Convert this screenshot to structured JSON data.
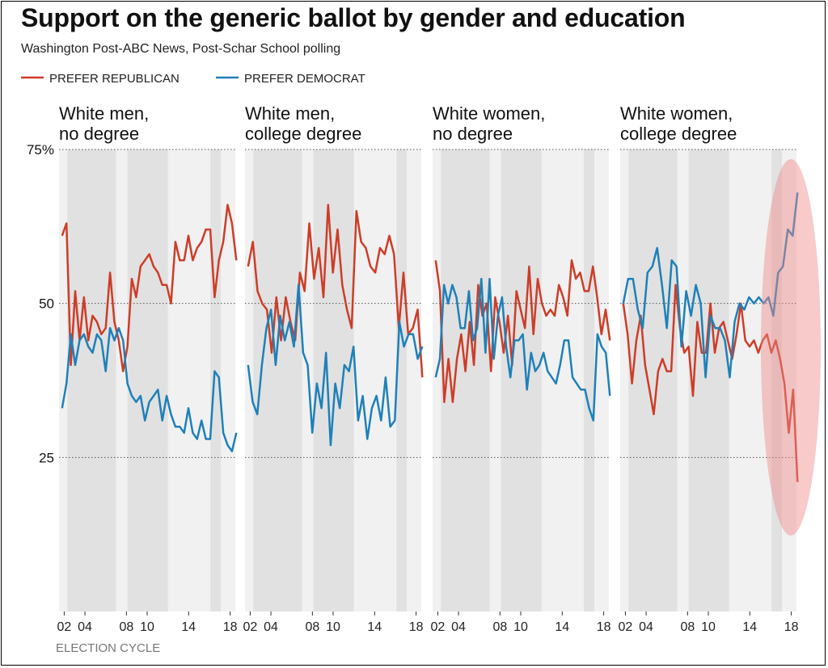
{
  "title": "Support on the generic ballot by gender and education",
  "subtitle": "Washington Post-ABC News, Post-Schar School polling",
  "colors": {
    "republican": "#cc3d28",
    "democrat": "#1e80b8",
    "panel_bg": "#f1f1f1",
    "band_bg": "#e1e1e1",
    "highlight": "#f08a8a"
  },
  "chart_data": {
    "type": "line",
    "title": "Support on the generic ballot by gender and education",
    "xlabel": "ELECTION CYCLE",
    "ylabel": "",
    "ylim": [
      0,
      75
    ],
    "y_ticks": [
      {
        "value": 75,
        "label": "75%"
      },
      {
        "value": 50,
        "label": "50"
      },
      {
        "value": 25,
        "label": "25"
      }
    ],
    "x_range": [
      2001.5,
      2018.5
    ],
    "x_ticks": [
      {
        "value": 2002,
        "label": "02"
      },
      {
        "value": 2004,
        "label": "04"
      },
      {
        "value": 2008,
        "label": "08"
      },
      {
        "value": 2010,
        "label": "10"
      },
      {
        "value": 2014,
        "label": "14"
      },
      {
        "value": 2018,
        "label": "18"
      }
    ],
    "shaded_periods": [
      [
        2002.3,
        2007.0
      ],
      [
        2008.1,
        2012.0
      ],
      [
        2016.1,
        2017.1
      ]
    ],
    "legend": [
      {
        "key": "republican",
        "label": "PREFER REPUBLICAN"
      },
      {
        "key": "democrat",
        "label": "PREFER DEMOCRAT"
      }
    ],
    "legend_position": "top-left",
    "grid": true,
    "highlight_note": "latest readings for white women with college degrees circled",
    "panels": [
      {
        "name": "White men, no degree",
        "title_lines": [
          "White men,",
          "no degree"
        ],
        "series": [
          {
            "name": "PREFER REPUBLICAN",
            "key": "republican",
            "values": [
              61,
              63,
              40,
              52,
              44,
              51,
              44,
              48,
              47,
              45,
              46,
              55,
              47,
              44,
              39,
              43,
              54,
              51,
              56,
              57,
              58,
              56,
              55,
              53,
              53,
              50,
              60,
              57,
              57,
              61,
              57,
              59,
              60,
              62,
              62,
              51,
              57,
              60,
              66,
              63,
              57
            ]
          },
          {
            "name": "PREFER DEMOCRAT",
            "key": "democrat",
            "values": [
              33,
              37,
              45,
              40,
              44,
              45,
              43,
              42,
              45,
              44,
              39,
              46,
              44,
              46,
              44,
              37,
              35,
              34,
              35,
              31,
              34,
              35,
              36,
              31,
              35,
              32,
              30,
              30,
              29,
              33,
              29,
              28,
              31,
              28,
              28,
              39,
              38,
              29,
              27,
              26,
              29
            ]
          }
        ]
      },
      {
        "name": "White men, college degree",
        "title_lines": [
          "White men,",
          "college degree"
        ],
        "series": [
          {
            "name": "PREFER REPUBLICAN",
            "key": "republican",
            "values": [
              56,
              60,
              52,
              50,
              49,
              42,
              51,
              44,
              51,
              47,
              44,
              55,
              52,
              63,
              54,
              59,
              51,
              66,
              55,
              62,
              53,
              49,
              46,
              65,
              60,
              59,
              56,
              55,
              59,
              58,
              61,
              58,
              46,
              55,
              45,
              46,
              49,
              38
            ]
          },
          {
            "name": "PREFER DEMOCRAT",
            "key": "democrat",
            "values": [
              40,
              34,
              32,
              40,
              46,
              49,
              40,
              48,
              44,
              47,
              43,
              53,
              42,
              40,
              29,
              37,
              33,
              42,
              27,
              37,
              33,
              40,
              39,
              43,
              31,
              35,
              28,
              33,
              35,
              31,
              38,
              30,
              31,
              47,
              43,
              45,
              45,
              41,
              43
            ]
          }
        ]
      },
      {
        "name": "White women, no degree",
        "title_lines": [
          "White women,",
          "no degree"
        ],
        "series": [
          {
            "name": "PREFER REPUBLICAN",
            "key": "republican",
            "values": [
              57,
              52,
              34,
              41,
              34,
              41,
              45,
              39,
              47,
              40,
              53,
              48,
              50,
              39,
              51,
              47,
              42,
              48,
              40,
              52,
              49,
              46,
              56,
              45,
              54,
              50,
              48,
              49,
              48,
              53,
              51,
              48,
              57,
              54,
              55,
              52,
              52,
              56,
              51,
              45,
              49,
              44
            ]
          },
          {
            "name": "PREFER DEMOCRAT",
            "key": "democrat",
            "values": [
              38,
              41,
              53,
              50,
              53,
              51,
              46,
              46,
              52,
              44,
              46,
              54,
              42,
              54,
              41,
              48,
              51,
              43,
              38,
              44,
              44,
              45,
              36,
              42,
              39,
              40,
              42,
              39,
              38,
              37,
              40,
              44,
              44,
              38,
              37,
              36,
              36,
              33,
              31,
              45,
              43,
              42,
              35
            ]
          }
        ]
      },
      {
        "name": "White women, college degree",
        "title_lines": [
          "White women,",
          "college degree"
        ],
        "series": [
          {
            "name": "PREFER REPUBLICAN",
            "key": "republican",
            "values": [
              50,
              45,
              37,
              44,
              48,
              40,
              36,
              32,
              39,
              41,
              39,
              39,
              53,
              46,
              42,
              43,
              35,
              47,
              42,
              42,
              50,
              42,
              46,
              47,
              44,
              41,
              45,
              50,
              44,
              43,
              44,
              42,
              44,
              45,
              42,
              44,
              41,
              37,
              29,
              36,
              21
            ]
          },
          {
            "name": "PREFER DEMOCRAT",
            "key": "democrat",
            "values": [
              50,
              54,
              54,
              49,
              46,
              55,
              56,
              59,
              53,
              46,
              57,
              56,
              43,
              52,
              48,
              53,
              50,
              38,
              48,
              46,
              46,
              44,
              38,
              47,
              50,
              49,
              51,
              50,
              51,
              50,
              51,
              48,
              55,
              56,
              62,
              61,
              68
            ]
          }
        ]
      }
    ]
  }
}
